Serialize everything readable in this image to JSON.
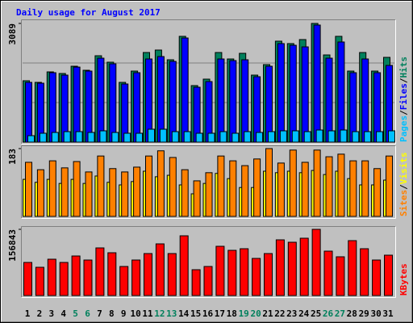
{
  "title": "Daily usage for August 2017",
  "legend_separator": "/",
  "chart_data": [
    {
      "type": "bar",
      "ylim": [
        0,
        3089
      ],
      "yticks": [
        3089
      ],
      "grid": true,
      "series": [
        {
          "name": "Pages",
          "color": "#00c0ff",
          "values": [
            168,
            231,
            252,
            273,
            273,
            252,
            294,
            252,
            231,
            231,
            336,
            336,
            273,
            273,
            231,
            231,
            273,
            231,
            273,
            252,
            273,
            294,
            294,
            273,
            315,
            294,
            315,
            273,
            273,
            273,
            294
          ]
        },
        {
          "name": "Files",
          "color": "#0000ff",
          "values": [
            1555,
            1534,
            1807,
            1744,
            1953,
            1849,
            2185,
            2038,
            1513,
            1807,
            2164,
            2227,
            2101,
            2710,
            1429,
            1576,
            2164,
            2122,
            2143,
            1702,
            1975,
            2564,
            2521,
            2479,
            3047,
            2185,
            2606,
            1807,
            2164,
            1807,
            1996
          ]
        },
        {
          "name": "Hits",
          "color": "#00805c",
          "values": [
            1597,
            1555,
            1828,
            1786,
            1975,
            1870,
            2248,
            2080,
            1555,
            1849,
            2332,
            2396,
            2143,
            2753,
            1471,
            1639,
            2332,
            2164,
            2311,
            1744,
            2017,
            2627,
            2564,
            2669,
            3089,
            2269,
            2753,
            1849,
            2332,
            1849,
            2206
          ]
        }
      ]
    },
    {
      "type": "bar",
      "ylim": [
        0,
        183
      ],
      "yticks": [
        183
      ],
      "grid": false,
      "series": [
        {
          "name": "Sites",
          "color": "#ff8000",
          "values": [
            146,
            126,
            150,
            131,
            148,
            120,
            163,
            129,
            120,
            133,
            163,
            177,
            159,
            126,
            96,
            118,
            163,
            150,
            137,
            155,
            183,
            144,
            179,
            146,
            179,
            161,
            168,
            150,
            150,
            129,
            163
          ]
        },
        {
          "name": "Visits",
          "color": "#ffff00",
          "values": [
            100,
            92,
            100,
            89,
            100,
            89,
            109,
            92,
            85,
            94,
            122,
            107,
            111,
            85,
            61,
            89,
            116,
            102,
            78,
            78,
            122,
            118,
            122,
            118,
            124,
            113,
            122,
            102,
            85,
            85,
            98
          ]
        }
      ]
    },
    {
      "type": "bar",
      "ylim": [
        0,
        156843
      ],
      "yticks": [
        156843
      ],
      "grid": false,
      "categories": [
        "1",
        "2",
        "3",
        "4",
        "5",
        "6",
        "7",
        "8",
        "9",
        "10",
        "11",
        "12",
        "13",
        "14",
        "15",
        "16",
        "17",
        "18",
        "19",
        "20",
        "21",
        "22",
        "23",
        "24",
        "25",
        "26",
        "27",
        "28",
        "29",
        "30",
        "31"
      ],
      "category_colors": [
        "#000000",
        "#000000",
        "#000000",
        "#000000",
        "#00805c",
        "#00805c",
        "#000000",
        "#000000",
        "#000000",
        "#000000",
        "#000000",
        "#00805c",
        "#00805c",
        "#000000",
        "#000000",
        "#000000",
        "#000000",
        "#000000",
        "#00805c",
        "#00805c",
        "#000000",
        "#000000",
        "#000000",
        "#000000",
        "#000000",
        "#00805c",
        "#00805c",
        "#000000",
        "#000000",
        "#000000",
        "#000000"
      ],
      "series": [
        {
          "name": "KBytes",
          "color": "#ff0000",
          "values": [
            78420,
            66945,
            86072,
            78420,
            93723,
            84159,
            112850,
            101374,
            68858,
            84159,
            99461,
            122414,
            99461,
            141541,
            61207,
            68858,
            116675,
            107112,
            110937,
            87985,
            99461,
            131977,
            126239,
            135802,
            156843,
            105200,
            91810,
            130063,
            110937,
            84159,
            95636
          ]
        }
      ]
    }
  ]
}
